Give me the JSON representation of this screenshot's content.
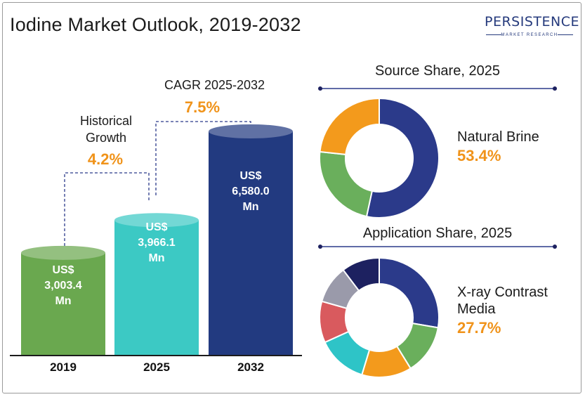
{
  "title": "Iodine Market Outlook, 2019-2032",
  "logo": {
    "main": "PERSISTENCE",
    "sub": "MARKET RESEARCH"
  },
  "annotations": {
    "historical_label": [
      "Historical",
      "Growth"
    ],
    "historical_value": "4.2%",
    "cagr_label": "CAGR 2025-2032",
    "cagr_value": "7.5%"
  },
  "colors": {
    "bar_2019": "#6aa84f",
    "bar_2025": "#3cc9c4",
    "bar_2032": "#223a80",
    "navy": "#2b3a8a",
    "green": "#6aaf5c",
    "orange": "#f39a1c",
    "teal": "#2ec4c7",
    "red": "#d95a5e",
    "gray": "#9a9aaa",
    "dark_navy": "#1d2160"
  },
  "chart_data": [
    {
      "type": "bar",
      "categories": [
        "2019",
        "2025",
        "2032"
      ],
      "values": [
        3003.4,
        3966.1,
        6580.0
      ],
      "value_labels": [
        [
          "US$",
          "3,003.4",
          "Mn"
        ],
        [
          "US$",
          "3,966.1",
          "Mn"
        ],
        [
          "US$",
          "6,580.0",
          "Mn"
        ]
      ],
      "bar_colors": [
        "#6aa84f",
        "#3cc9c4",
        "#223a80"
      ],
      "title": "",
      "xlabel": "",
      "ylabel": ""
    },
    {
      "type": "pie",
      "title": "Source Share, 2025",
      "highlight_label": "Natural Brine",
      "highlight_value": "53.4%",
      "values": [
        53.4,
        23.3,
        23.3
      ],
      "colors": [
        "#2b3a8a",
        "#6aaf5c",
        "#f39a1c"
      ]
    },
    {
      "type": "pie",
      "title": "Application Share, 2025",
      "highlight_label": [
        "X-ray Contrast",
        "Media"
      ],
      "highlight_value": "27.7%",
      "values": [
        27.7,
        13.5,
        13.5,
        13.5,
        11.2,
        10.3,
        10.3
      ],
      "colors": [
        "#2b3a8a",
        "#6aaf5c",
        "#f39a1c",
        "#2ec4c7",
        "#d95a5e",
        "#9a9aaa",
        "#1d2160"
      ]
    }
  ]
}
